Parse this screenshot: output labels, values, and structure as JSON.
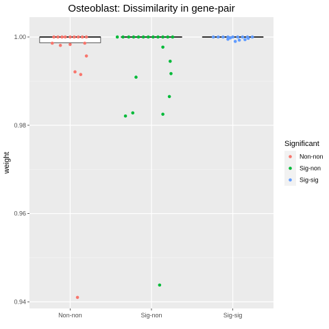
{
  "chart_data": {
    "type": "boxplot_jitter",
    "title": "Osteoblast: Dissimilarity in gene-pair",
    "xlabel": "",
    "ylabel": "weight",
    "ylim": [
      0.9385,
      1.0045
    ],
    "yticks": [
      0.94,
      0.96,
      0.98,
      1.0
    ],
    "ytick_labels": [
      "0.94",
      "0.96",
      "0.98",
      "1.00"
    ],
    "categories": [
      "Non-non",
      "Sig-non",
      "Sig-sig"
    ],
    "legend": {
      "title": "Significant",
      "placement": "right",
      "entries": [
        "Non-non",
        "Sig-non",
        "Sig-sig"
      ]
    },
    "colors": {
      "Non-non": "#F8766D",
      "Sig-non": "#00BA38",
      "Sig-sig": "#619CFF"
    },
    "boxes": [
      {
        "category": "Non-non",
        "q1": 0.9987,
        "median": 1.0,
        "q3": 1.0,
        "whisker_low": 0.9987,
        "whisker_high": 1.0
      },
      {
        "category": "Sig-non",
        "q1": 1.0,
        "median": 1.0,
        "q3": 1.0,
        "whisker_low": 1.0,
        "whisker_high": 1.0
      },
      {
        "category": "Sig-sig",
        "q1": 1.0,
        "median": 1.0,
        "q3": 1.0,
        "whisker_low": 1.0,
        "whisker_high": 1.0
      }
    ],
    "series": [
      {
        "name": "Non-non",
        "points": [
          {
            "x": -0.2,
            "y": 1.0
          },
          {
            "x": -0.15,
            "y": 1.0
          },
          {
            "x": -0.1,
            "y": 1.0
          },
          {
            "x": -0.06,
            "y": 1.0
          },
          {
            "x": 0.0,
            "y": 1.0
          },
          {
            "x": 0.05,
            "y": 1.0
          },
          {
            "x": 0.1,
            "y": 1.0
          },
          {
            "x": 0.15,
            "y": 1.0
          },
          {
            "x": 0.2,
            "y": 1.0
          },
          {
            "x": -0.22,
            "y": 0.9986
          },
          {
            "x": -0.12,
            "y": 0.9981
          },
          {
            "x": 0.0,
            "y": 0.9983
          },
          {
            "x": 0.18,
            "y": 0.9986
          },
          {
            "x": 0.2,
            "y": 0.9957
          },
          {
            "x": 0.06,
            "y": 0.9921
          },
          {
            "x": 0.13,
            "y": 0.9915
          },
          {
            "x": 0.09,
            "y": 0.941
          }
        ]
      },
      {
        "name": "Sig-non",
        "points": [
          {
            "x": -0.42,
            "y": 1.0
          },
          {
            "x": -0.35,
            "y": 1.0
          },
          {
            "x": -0.28,
            "y": 1.0
          },
          {
            "x": -0.22,
            "y": 1.0
          },
          {
            "x": -0.16,
            "y": 1.0
          },
          {
            "x": -0.1,
            "y": 1.0
          },
          {
            "x": -0.04,
            "y": 1.0
          },
          {
            "x": 0.02,
            "y": 1.0
          },
          {
            "x": 0.08,
            "y": 1.0
          },
          {
            "x": 0.14,
            "y": 1.0
          },
          {
            "x": 0.2,
            "y": 1.0
          },
          {
            "x": 0.26,
            "y": 1.0
          },
          {
            "x": 0.14,
            "y": 0.9977
          },
          {
            "x": 0.23,
            "y": 0.9945
          },
          {
            "x": 0.24,
            "y": 0.9917
          },
          {
            "x": -0.19,
            "y": 0.9909
          },
          {
            "x": 0.22,
            "y": 0.9865
          },
          {
            "x": -0.23,
            "y": 0.9828
          },
          {
            "x": -0.32,
            "y": 0.9821
          },
          {
            "x": 0.14,
            "y": 0.9825
          },
          {
            "x": 0.1,
            "y": 0.9438
          }
        ]
      },
      {
        "name": "Sig-sig",
        "points": [
          {
            "x": -0.24,
            "y": 1.0
          },
          {
            "x": -0.18,
            "y": 1.0
          },
          {
            "x": -0.12,
            "y": 1.0
          },
          {
            "x": -0.06,
            "y": 1.0
          },
          {
            "x": 0.0,
            "y": 1.0
          },
          {
            "x": 0.06,
            "y": 1.0
          },
          {
            "x": 0.12,
            "y": 1.0
          },
          {
            "x": 0.18,
            "y": 1.0
          },
          {
            "x": 0.24,
            "y": 1.0
          },
          {
            "x": 0.08,
            "y": 0.9993
          },
          {
            "x": 0.03,
            "y": 0.999
          },
          {
            "x": 0.15,
            "y": 0.9994
          },
          {
            "x": -0.06,
            "y": 0.9995
          },
          {
            "x": 0.19,
            "y": 0.9997
          },
          {
            "x": -0.03,
            "y": 0.9998
          }
        ]
      }
    ]
  }
}
